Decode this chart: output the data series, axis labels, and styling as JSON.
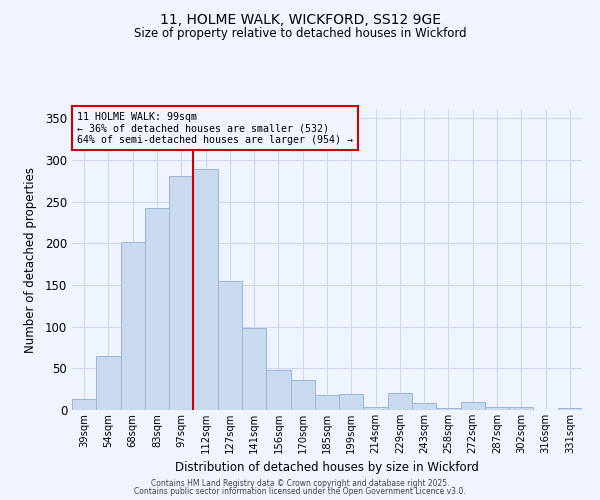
{
  "title_line1": "11, HOLME WALK, WICKFORD, SS12 9GE",
  "title_line2": "Size of property relative to detached houses in Wickford",
  "xlabel": "Distribution of detached houses by size in Wickford",
  "ylabel": "Number of detached properties",
  "categories": [
    "39sqm",
    "54sqm",
    "68sqm",
    "83sqm",
    "97sqm",
    "112sqm",
    "127sqm",
    "141sqm",
    "156sqm",
    "170sqm",
    "185sqm",
    "199sqm",
    "214sqm",
    "229sqm",
    "243sqm",
    "258sqm",
    "272sqm",
    "287sqm",
    "302sqm",
    "316sqm",
    "331sqm"
  ],
  "values": [
    13,
    65,
    202,
    242,
    281,
    289,
    155,
    98,
    48,
    36,
    18,
    19,
    4,
    20,
    9,
    3,
    10,
    4,
    4,
    0,
    2
  ],
  "bar_color": "#c9daf0",
  "bar_edge_color": "#9ab5d8",
  "vline_x_index": 4,
  "vline_color": "#cc0000",
  "annotation_text": "11 HOLME WALK: 99sqm\n← 36% of detached houses are smaller (532)\n64% of semi-detached houses are larger (954) →",
  "annotation_box_color": "#cc0000",
  "ylim": [
    0,
    360
  ],
  "yticks": [
    0,
    50,
    100,
    150,
    200,
    250,
    300,
    350
  ],
  "footer_line1": "Contains HM Land Registry data © Crown copyright and database right 2025.",
  "footer_line2": "Contains public sector information licensed under the Open Government Licence v3.0.",
  "bg_color": "#f0f4ff",
  "grid_color": "#cdd8ee"
}
